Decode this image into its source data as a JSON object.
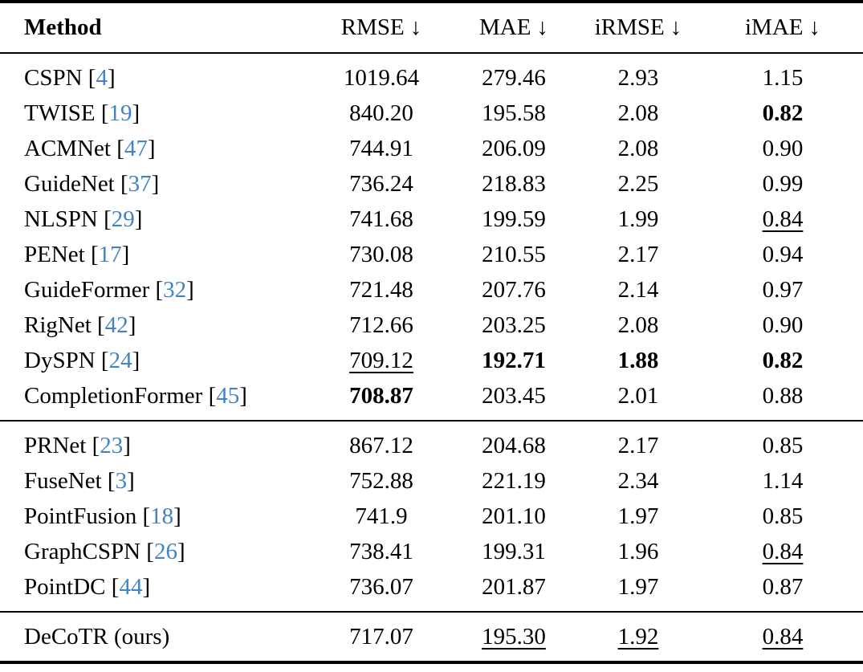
{
  "colors": {
    "citation": "#4183c4",
    "text": "#000000",
    "rule": "#000000",
    "background": "#ffffff"
  },
  "table": {
    "columns": [
      {
        "label": "Method",
        "arrow": ""
      },
      {
        "label": "RMSE",
        "arrow": "↓"
      },
      {
        "label": "MAE",
        "arrow": "↓"
      },
      {
        "label": "iRMSE",
        "arrow": "↓"
      },
      {
        "label": "iMAE",
        "arrow": "↓"
      }
    ],
    "groups": [
      {
        "rows": [
          {
            "method": "CSPN",
            "cite": "4",
            "values": [
              {
                "v": "1019.64"
              },
              {
                "v": "279.46"
              },
              {
                "v": "2.93"
              },
              {
                "v": "1.15"
              }
            ]
          },
          {
            "method": "TWISE",
            "cite": "19",
            "values": [
              {
                "v": "840.20"
              },
              {
                "v": "195.58"
              },
              {
                "v": "2.08"
              },
              {
                "v": "0.82",
                "style": "bold"
              }
            ]
          },
          {
            "method": "ACMNet",
            "cite": "47",
            "values": [
              {
                "v": "744.91"
              },
              {
                "v": "206.09"
              },
              {
                "v": "2.08"
              },
              {
                "v": "0.90"
              }
            ]
          },
          {
            "method": "GuideNet",
            "cite": "37",
            "values": [
              {
                "v": "736.24"
              },
              {
                "v": "218.83"
              },
              {
                "v": "2.25"
              },
              {
                "v": "0.99"
              }
            ]
          },
          {
            "method": "NLSPN",
            "cite": "29",
            "values": [
              {
                "v": "741.68"
              },
              {
                "v": "199.59"
              },
              {
                "v": "1.99"
              },
              {
                "v": "0.84",
                "style": "underline"
              }
            ]
          },
          {
            "method": "PENet",
            "cite": "17",
            "values": [
              {
                "v": "730.08"
              },
              {
                "v": "210.55"
              },
              {
                "v": "2.17"
              },
              {
                "v": "0.94"
              }
            ]
          },
          {
            "method": "GuideFormer",
            "cite": "32",
            "values": [
              {
                "v": "721.48"
              },
              {
                "v": "207.76"
              },
              {
                "v": "2.14"
              },
              {
                "v": "0.97"
              }
            ]
          },
          {
            "method": "RigNet",
            "cite": "42",
            "values": [
              {
                "v": "712.66"
              },
              {
                "v": "203.25"
              },
              {
                "v": "2.08"
              },
              {
                "v": "0.90"
              }
            ]
          },
          {
            "method": "DySPN",
            "cite": "24",
            "values": [
              {
                "v": "709.12",
                "style": "underline"
              },
              {
                "v": "192.71",
                "style": "bold"
              },
              {
                "v": "1.88",
                "style": "bold"
              },
              {
                "v": "0.82",
                "style": "bold"
              }
            ]
          },
          {
            "method": "CompletionFormer",
            "cite": "45",
            "values": [
              {
                "v": "708.87",
                "style": "bold"
              },
              {
                "v": "203.45"
              },
              {
                "v": "2.01"
              },
              {
                "v": "0.88"
              }
            ]
          }
        ]
      },
      {
        "rows": [
          {
            "method": "PRNet",
            "cite": "23",
            "values": [
              {
                "v": "867.12"
              },
              {
                "v": "204.68"
              },
              {
                "v": "2.17"
              },
              {
                "v": "0.85"
              }
            ]
          },
          {
            "method": "FuseNet",
            "cite": "3",
            "values": [
              {
                "v": "752.88"
              },
              {
                "v": "221.19"
              },
              {
                "v": "2.34"
              },
              {
                "v": "1.14"
              }
            ]
          },
          {
            "method": "PointFusion",
            "cite": "18",
            "values": [
              {
                "v": "741.9"
              },
              {
                "v": "201.10"
              },
              {
                "v": "1.97"
              },
              {
                "v": "0.85"
              }
            ]
          },
          {
            "method": "GraphCSPN",
            "cite": "26",
            "values": [
              {
                "v": "738.41"
              },
              {
                "v": "199.31"
              },
              {
                "v": "1.96"
              },
              {
                "v": "0.84",
                "style": "underline"
              }
            ]
          },
          {
            "method": "PointDC",
            "cite": "44",
            "values": [
              {
                "v": "736.07"
              },
              {
                "v": "201.87"
              },
              {
                "v": "1.97"
              },
              {
                "v": "0.87"
              }
            ]
          }
        ]
      },
      {
        "rows": [
          {
            "method": "DeCoTR (ours)",
            "cite": null,
            "values": [
              {
                "v": "717.07"
              },
              {
                "v": "195.30",
                "style": "underline"
              },
              {
                "v": "1.92",
                "style": "underline"
              },
              {
                "v": "0.84",
                "style": "underline"
              }
            ]
          }
        ]
      }
    ]
  }
}
